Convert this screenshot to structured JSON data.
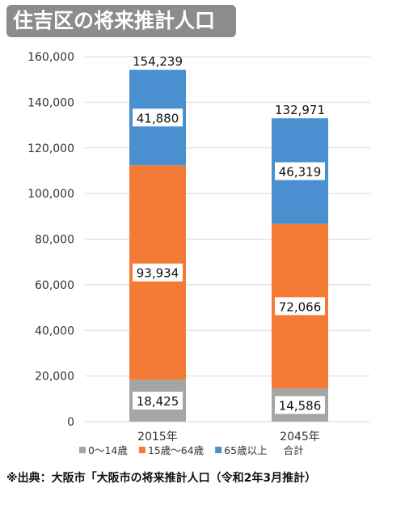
{
  "header": {
    "title": "住吉区の将来推計人口"
  },
  "chart_data": {
    "type": "bar",
    "stacked": true,
    "categories": [
      "2015年",
      "2045年"
    ],
    "series": [
      {
        "name": "0～14歳",
        "values": [
          18425,
          14586
        ],
        "color": "#a5a5a5"
      },
      {
        "name": "15歳～64歳",
        "values": [
          93934,
          72066
        ],
        "color": "#f47b35"
      },
      {
        "name": "65歳以上",
        "values": [
          41880,
          46319
        ],
        "color": "#4a8fd0"
      }
    ],
    "data_labels": [
      [
        "18,425",
        "93,934",
        "41,880"
      ],
      [
        "14,586",
        "72,066",
        "46,319"
      ]
    ],
    "totals": [
      154239,
      132971
    ],
    "total_labels": [
      "154,239",
      "132,971"
    ],
    "total_series_name": "合計",
    "ylim": [
      0,
      160000
    ],
    "yticks": [
      0,
      20000,
      40000,
      60000,
      80000,
      100000,
      120000,
      140000,
      160000
    ],
    "ytick_labels": [
      "0",
      "20,000",
      "40,000",
      "60,000",
      "80,000",
      "100,000",
      "120,000",
      "140,000",
      "160,000"
    ],
    "grid": true,
    "legend_position": "bottom",
    "title": "住吉区の将来推計人口",
    "xlabel": "",
    "ylabel": ""
  },
  "footer": {
    "source_note": "※出典：大阪市「大阪市の将来推計人口（令和2年3月推計）"
  }
}
